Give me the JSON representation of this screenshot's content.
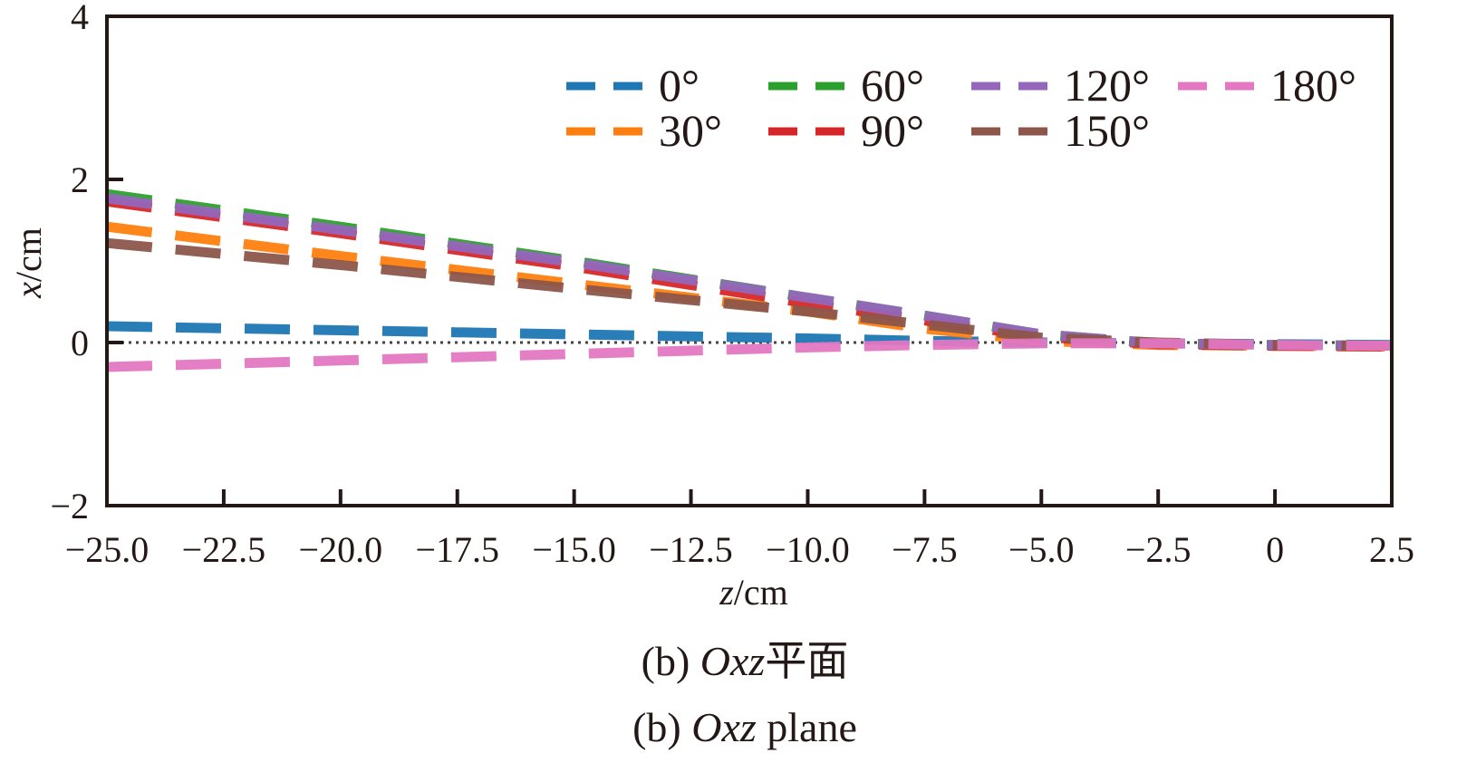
{
  "chart_data": {
    "type": "line",
    "xlabel_var": "z",
    "xlabel_unit": "/cm",
    "ylabel_var": "x",
    "ylabel_unit": "/cm",
    "xlim": [
      -25,
      2.5
    ],
    "ylim": [
      -2,
      4
    ],
    "xticks": [
      -25,
      -22.5,
      -20,
      -17.5,
      -15,
      -12.5,
      -10,
      -7.5,
      -5,
      -2.5,
      0,
      2.5
    ],
    "xtick_labels": [
      "−25.0",
      "−22.5",
      "−20.0",
      "−17.5",
      "−15.0",
      "−12.5",
      "−10.0",
      "−7.5",
      "−5.0",
      "−2.5",
      "0",
      "2.5"
    ],
    "yticks": [
      -2,
      0,
      2,
      4
    ],
    "ytick_labels": [
      "−2",
      "0",
      "2",
      "4"
    ],
    "legend_placement": "top-right",
    "reference_line": 0,
    "x": [
      -25,
      -20,
      -15,
      -10,
      -7.5,
      -5,
      -2.5,
      0,
      2.5
    ],
    "series": [
      {
        "name": "0°",
        "color": "#1f77b4",
        "values": [
          0.2,
          0.15,
          0.1,
          0.05,
          0.02,
          0.0,
          -0.01,
          -0.02,
          -0.03
        ]
      },
      {
        "name": "30°",
        "color": "#ff7f0e",
        "values": [
          1.42,
          1.06,
          0.72,
          0.38,
          0.17,
          0.02,
          -0.03,
          -0.04,
          -0.05
        ]
      },
      {
        "name": "60°",
        "color": "#2ca02c",
        "values": [
          1.82,
          1.42,
          1.0,
          0.55,
          0.33,
          0.1,
          -0.01,
          -0.03,
          -0.04
        ]
      },
      {
        "name": "90°",
        "color": "#d62728",
        "values": [
          1.73,
          1.34,
          0.93,
          0.48,
          0.27,
          0.07,
          -0.02,
          -0.04,
          -0.05
        ]
      },
      {
        "name": "120°",
        "color": "#9467bd",
        "values": [
          1.77,
          1.38,
          0.98,
          0.55,
          0.33,
          0.1,
          -0.01,
          -0.03,
          -0.04
        ]
      },
      {
        "name": "150°",
        "color": "#8c564b",
        "values": [
          1.22,
          0.95,
          0.66,
          0.38,
          0.22,
          0.06,
          0.0,
          -0.03,
          -0.04
        ]
      },
      {
        "name": "180°",
        "color": "#e377c2",
        "values": [
          -0.3,
          -0.22,
          -0.14,
          -0.06,
          -0.03,
          -0.01,
          -0.01,
          -0.03,
          -0.04
        ]
      }
    ]
  },
  "caption": {
    "cn_prefix": "(b) ",
    "cn_italic": "Oxz",
    "cn_suffix": "平面",
    "en_prefix": "(b) ",
    "en_italic": "Oxz",
    "en_suffix": " plane"
  }
}
